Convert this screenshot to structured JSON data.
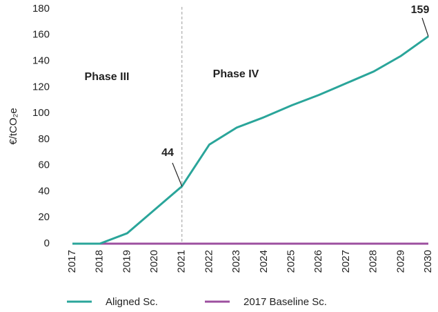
{
  "chart_data": {
    "type": "line",
    "y_label": "€/tCO₂e",
    "annotations": [
      "Phase III",
      "Phase IV"
    ],
    "categories": [
      "2017",
      "2018",
      "2019",
      "2020",
      "2021",
      "2022",
      "2023",
      "2024",
      "2025",
      "2026",
      "2027",
      "2028",
      "2029",
      "2030"
    ],
    "series": [
      {
        "name": "Aligned Sc.",
        "color": "#2aa59a",
        "values": [
          0,
          0,
          8,
          26,
          44,
          76,
          89,
          97,
          106,
          114,
          123,
          132,
          144,
          159
        ]
      },
      {
        "name": "2017 Baseline Sc.",
        "color": "#9c4f9f",
        "values": [
          0,
          0,
          0,
          0,
          0,
          0,
          0,
          0,
          0,
          0,
          0,
          0,
          0,
          0
        ]
      }
    ],
    "ylim": [
      0,
      180
    ],
    "yticks": [
      0,
      20,
      40,
      60,
      80,
      100,
      120,
      140,
      160,
      180
    ],
    "grid": false
  }
}
